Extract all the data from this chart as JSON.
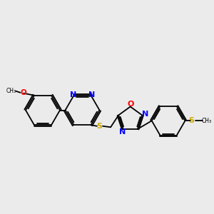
{
  "background_color": "#ebebeb",
  "bond_color": "#000000",
  "atom_colors": {
    "N": "#0000ff",
    "O": "#ff0000",
    "S": "#ccaa00",
    "C": "#000000"
  },
  "figsize": [
    3.0,
    3.0
  ],
  "dpi": 100
}
